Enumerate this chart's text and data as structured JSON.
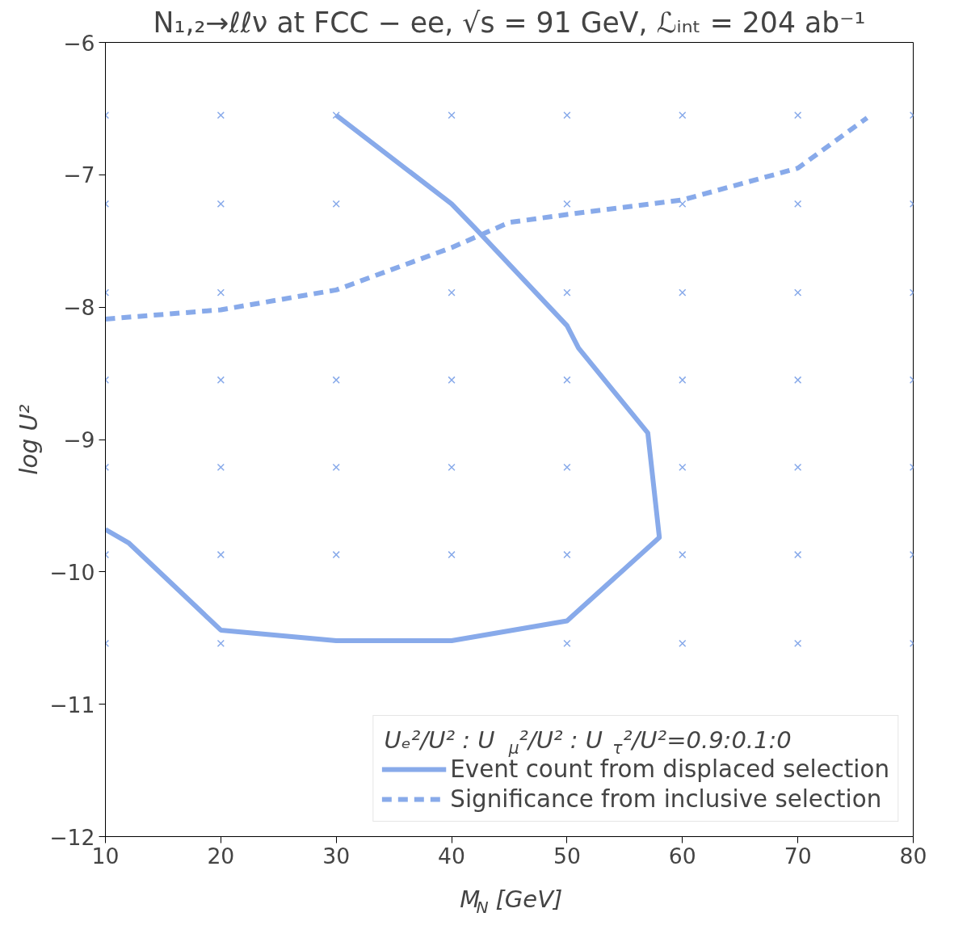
{
  "chart_data": {
    "type": "line",
    "title": "N₁,₂→ℓℓν at FCC − ee, √s = 91 GeV, ℒᵢₙₜ = 204 ab⁻¹",
    "xlabel": "M$_{N}$ [GeV]",
    "ylabel": "log U²",
    "legend_title": "Uₑ²/U² : U$_{μ}$²/U² : U$_{τ}$²/U²=0.9:0.1:0",
    "xlim": [
      10,
      80
    ],
    "ylim": [
      -12,
      -6
    ],
    "xticks": [
      10,
      20,
      30,
      40,
      50,
      60,
      70,
      80
    ],
    "yticks": [
      -12,
      -11,
      -10,
      -9,
      -8,
      -7,
      -6
    ],
    "grid": false,
    "legend": "bottom right",
    "series": [
      {
        "name": "Event count from displaced selection",
        "color": "#88aaea",
        "line_style": "solid",
        "x": [
          30,
          40,
          42,
          50,
          51,
          57,
          58,
          50,
          40,
          30,
          20,
          12,
          10
        ],
        "values": [
          -6.55,
          -7.22,
          -7.4,
          -8.14,
          -8.31,
          -8.95,
          -9.74,
          -10.37,
          -10.52,
          -10.52,
          -10.44,
          -9.78,
          -9.68
        ]
      },
      {
        "name": "Significance from inclusive selection",
        "color": "#88aaea",
        "line_style": "dashed",
        "x": [
          10,
          20,
          30,
          40,
          45,
          50,
          60,
          70,
          76
        ],
        "values": [
          -8.09,
          -8.02,
          -7.87,
          -7.55,
          -7.36,
          -7.3,
          -7.19,
          -6.95,
          -6.57
        ]
      },
      {
        "type": "scatter",
        "marker": "cross",
        "color": "#88aaea",
        "x": [
          10,
          20,
          30,
          40,
          50,
          60,
          70,
          80,
          10,
          20,
          30,
          40,
          50,
          60,
          70,
          80,
          10,
          20,
          30,
          40,
          50,
          60,
          70,
          80,
          10,
          20,
          30,
          40,
          50,
          60,
          70,
          80,
          10,
          20,
          30,
          40,
          50,
          60,
          70,
          80,
          10,
          20,
          30,
          40,
          50,
          60,
          70,
          80,
          10,
          20,
          30,
          40,
          50,
          60,
          70,
          80
        ],
        "values": [
          -6.55,
          -6.55,
          -6.55,
          -6.55,
          -6.55,
          -6.55,
          -6.55,
          -6.55,
          -7.22,
          -7.22,
          -7.22,
          null,
          -7.22,
          -7.22,
          -7.22,
          -7.22,
          -7.89,
          -7.89,
          null,
          -7.89,
          -7.89,
          -7.89,
          -7.89,
          -7.89,
          -8.55,
          -8.55,
          -8.55,
          -8.55,
          -8.55,
          -8.55,
          -8.55,
          -8.55,
          -9.21,
          -9.21,
          -9.21,
          -9.21,
          -9.21,
          -9.21,
          -9.21,
          -9.21,
          -9.87,
          -9.87,
          -9.87,
          -9.87,
          -9.87,
          -9.87,
          -9.87,
          -9.87,
          -10.54,
          -10.54,
          null,
          null,
          -10.54,
          -10.54,
          -10.54,
          -10.54
        ]
      }
    ]
  }
}
